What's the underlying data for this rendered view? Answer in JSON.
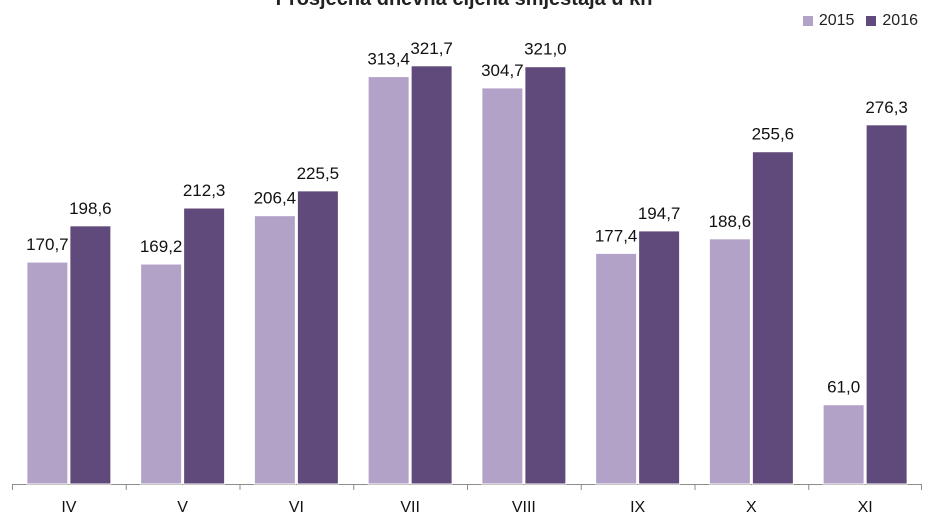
{
  "chart_data": {
    "type": "bar",
    "title": "Prosječna dnevna cijena smještaja u kn",
    "categories": [
      "IV",
      "V",
      "VI",
      "VII",
      "VIII",
      "IX",
      "X",
      "XI"
    ],
    "series": [
      {
        "name": "2015",
        "color": "#b3a2c7",
        "values": [
          170.7,
          169.2,
          206.4,
          313.4,
          304.7,
          177.4,
          188.6,
          61.0
        ],
        "labels": [
          "170,7",
          "169,2",
          "206,4",
          "313,4",
          "304,7",
          "177,4",
          "188,6",
          "61,0"
        ]
      },
      {
        "name": "2016",
        "color": "#604a7b",
        "values": [
          198.6,
          212.3,
          225.5,
          321.7,
          321.0,
          194.7,
          255.6,
          276.3
        ],
        "labels": [
          "198,6",
          "212,3",
          "225,5",
          "321,7",
          "321,0",
          "194,7",
          "255,6",
          "276,3"
        ]
      }
    ],
    "xlabel": "",
    "ylabel": "",
    "ylim": [
      0,
      340
    ],
    "grid": false,
    "legend_position": "top-right"
  }
}
